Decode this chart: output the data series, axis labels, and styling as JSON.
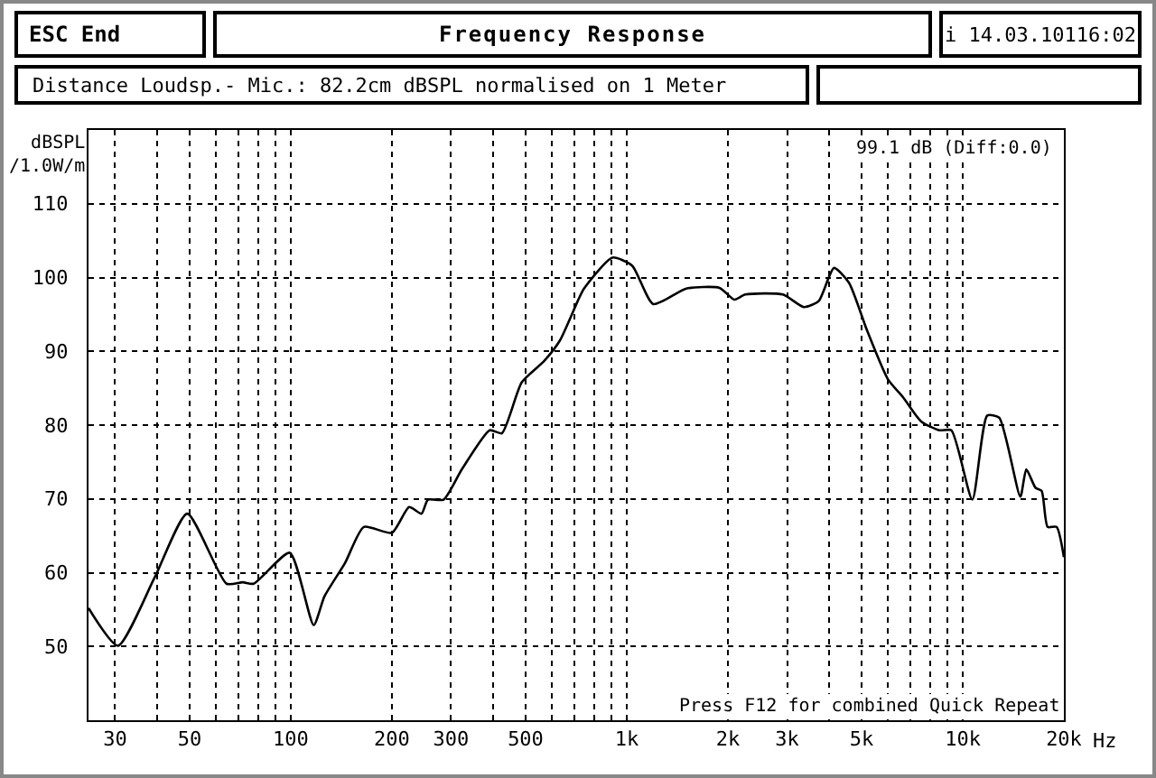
{
  "chart_data": {
    "type": "line",
    "title": "Frequency Response",
    "subtitle": "Distance Loudsp.- Mic.: 82.2cm dBSPL normalised on 1 Meter",
    "ylabel": "dBSPL /1.0W/m",
    "annotations": [
      "99.1 dB (Diff:0.0)",
      "Press F12 for combined Quick Repeat",
      "ESC End",
      "i 14.03.10116:02"
    ],
    "x": [
      25,
      30.6,
      39.3,
      49.2,
      64.4,
      72,
      77.5,
      99.3,
      117,
      126,
      145,
      165,
      200,
      225,
      245,
      256,
      285,
      323,
      391,
      425,
      487,
      568,
      633,
      716,
      746,
      906,
      1038,
      1199,
      1504,
      1888,
      2091,
      2254,
      2916,
      3364,
      3725,
      4138,
      4585,
      5193,
      5990,
      6640,
      7520,
      8520,
      9250,
      10680,
      11830,
      12840,
      14840,
      15460,
      16470,
      17170,
      17890,
      19020,
      20000
    ],
    "series": [
      {
        "color": "#000000",
        "values": [
          55.2,
          50.1,
          59.3,
          68.0,
          58.5,
          58.7,
          58.5,
          62.7,
          52.9,
          56.8,
          61.3,
          66.2,
          65.4,
          68.9,
          68.0,
          69.9,
          69.9,
          74.0,
          79.3,
          78.9,
          85.8,
          88.7,
          91.5,
          96.9,
          98.5,
          102.7,
          101.6,
          96.4,
          98.5,
          98.6,
          97.0,
          97.7,
          97.7,
          96.0,
          96.8,
          101.3,
          99.3,
          92.8,
          86.2,
          83.8,
          80.5,
          79.3,
          79.3,
          69.9,
          81.3,
          81.0,
          70.3,
          74.0,
          71.5,
          71.1,
          66.2,
          66.2,
          62.1
        ]
      }
    ],
    "log": "x",
    "xlim": [
      25,
      20000
    ],
    "ylim": [
      40,
      120
    ],
    "xticks": [
      30,
      {
        "value": 40,
        "label": null
      },
      50,
      {
        "value": 60,
        "label": null
      },
      {
        "value": 70,
        "label": null
      },
      {
        "value": 80,
        "label": null
      },
      {
        "value": 90,
        "label": null
      },
      100,
      200,
      300,
      {
        "value": 400,
        "label": null
      },
      500,
      {
        "value": 600,
        "label": null
      },
      {
        "value": 700,
        "label": null
      },
      {
        "value": 800,
        "label": null
      },
      {
        "value": 900,
        "label": null
      },
      {
        "value": 1000,
        "label": "1k"
      },
      {
        "value": 2000,
        "label": "2k"
      },
      {
        "value": 3000,
        "label": "3k"
      },
      {
        "value": 4000,
        "label": null
      },
      {
        "value": 5000,
        "label": "5k"
      },
      {
        "value": 6000,
        "label": null
      },
      {
        "value": 7000,
        "label": null
      },
      {
        "value": 8000,
        "label": null
      },
      {
        "value": 9000,
        "label": null
      },
      {
        "value": 10000,
        "label": "10k"
      },
      {
        "value": 20000,
        "label": "20k"
      }
    ],
    "xlabel": "Hz",
    "yticks": [
      50,
      60,
      70,
      80,
      90,
      100,
      110
    ],
    "grid": true,
    "line_style": "solid",
    "marker": "none"
  }
}
